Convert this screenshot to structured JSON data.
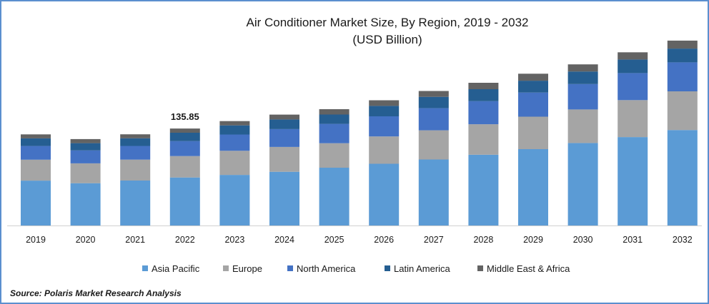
{
  "chart_data": {
    "type": "bar",
    "stacked": true,
    "title": "Air Conditioner Market Size, By Region, 2019 - 2032",
    "subtitle": "(USD Billion)",
    "categories": [
      "2019",
      "2020",
      "2021",
      "2022",
      "2023",
      "2024",
      "2025",
      "2026",
      "2027",
      "2028",
      "2029",
      "2030",
      "2031",
      "2032"
    ],
    "series": [
      {
        "name": "Asia Pacific",
        "color": "#5b9bd5",
        "values": [
          62.9,
          59.3,
          63.0,
          67.3,
          70.9,
          75.3,
          81.0,
          86.5,
          92.5,
          99.2,
          107.0,
          115.6,
          123.9,
          133.8
        ]
      },
      {
        "name": "Europe",
        "color": "#a5a5a5",
        "values": [
          29.3,
          27.8,
          29.3,
          30.0,
          33.8,
          34.8,
          34.3,
          38.3,
          40.9,
          42.7,
          45.5,
          47.0,
          51.8,
          54.2
        ]
      },
      {
        "name": "North America",
        "color": "#4472c4",
        "values": [
          19.2,
          18.1,
          19.2,
          20.9,
          22.8,
          25.0,
          27.1,
          28.2,
          31.0,
          32.3,
          33.8,
          35.6,
          37.9,
          40.6
        ]
      },
      {
        "name": "Latin America",
        "color": "#255e91",
        "values": [
          10.7,
          10.2,
          10.7,
          11.8,
          12.8,
          13.5,
          13.1,
          14.6,
          15.9,
          16.8,
          16.6,
          17.6,
          19.0,
          19.3
        ]
      },
      {
        "name": "Middle East & Africa",
        "color": "#636363",
        "values": [
          5.6,
          5.7,
          5.6,
          5.9,
          6.0,
          6.8,
          7.5,
          7.9,
          8.2,
          9.0,
          9.8,
          10.0,
          10.1,
          11.2
        ]
      }
    ],
    "data_labels": [
      {
        "category": "2022",
        "text": "135.85"
      }
    ],
    "ylim": [
      0,
      250
    ],
    "xlabel": "",
    "ylabel": "",
    "grid": false,
    "legend": "bottom",
    "source": "Source: Polaris  Market Research Analysis"
  }
}
